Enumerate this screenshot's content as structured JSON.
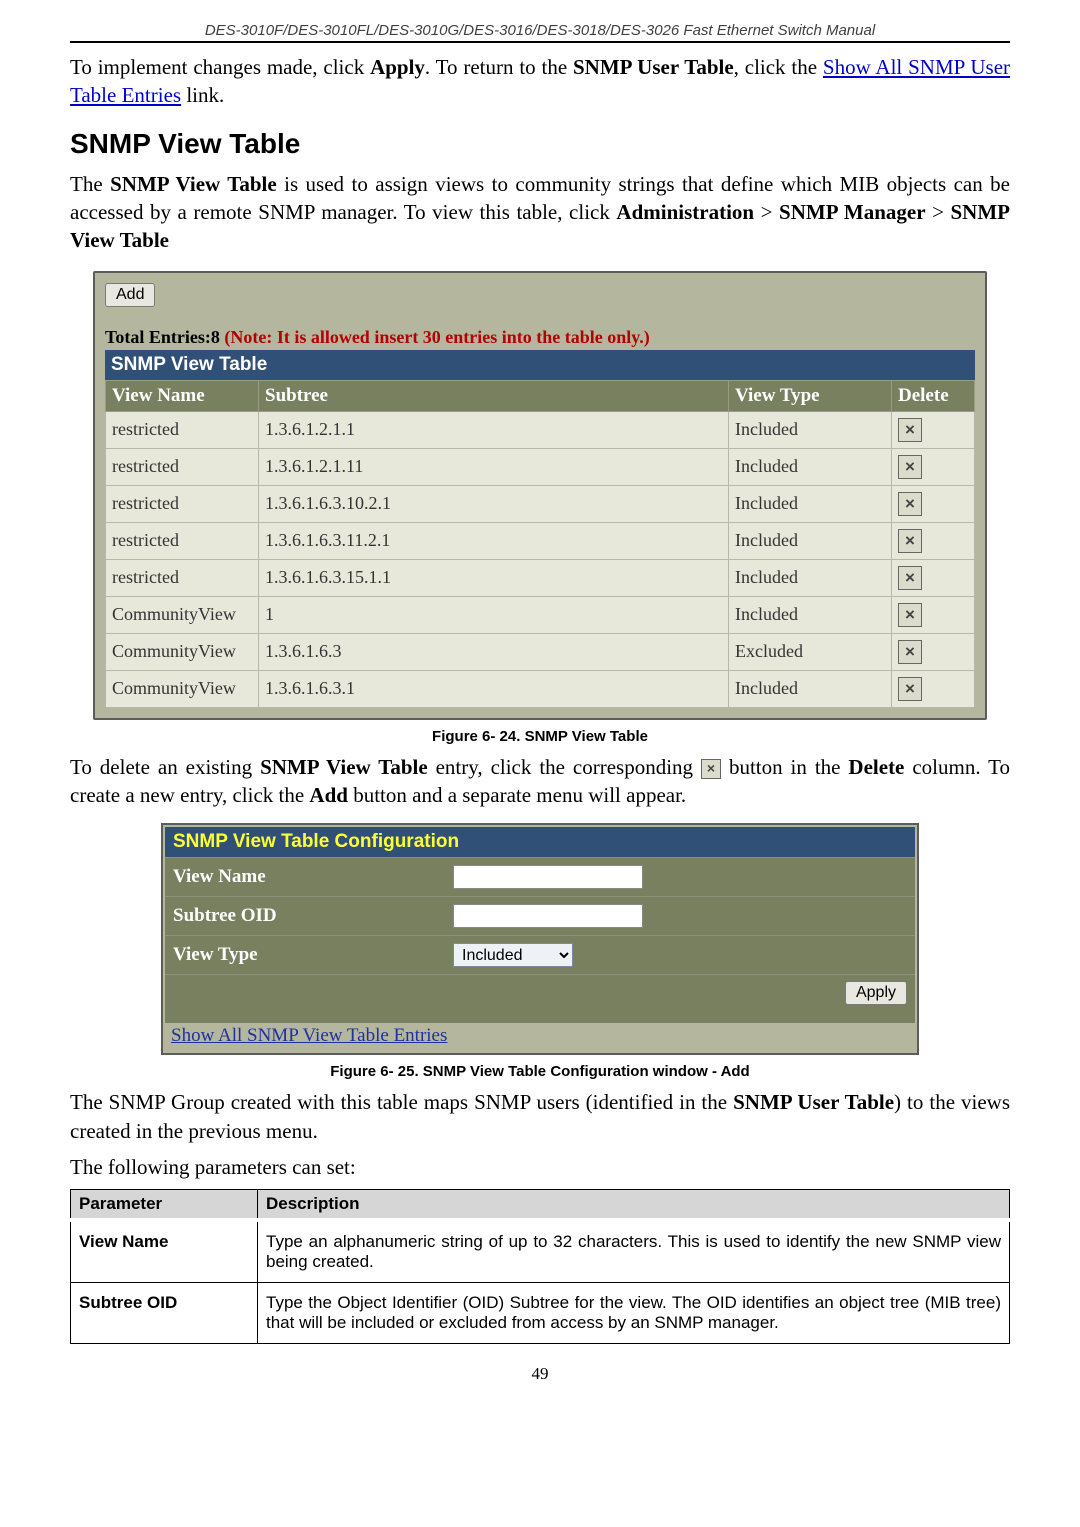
{
  "doc_header": "DES-3010F/DES-3010FL/DES-3010G/DES-3016/DES-3018/DES-3026 Fast Ethernet Switch Manual",
  "intro_para": {
    "pre": "To implement changes made, click ",
    "apply": "Apply",
    "mid": ". To return to the ",
    "snmp_user_table": "SNMP User Table",
    "mid2": ", click the ",
    "link": "Show All SNMP User Table Entries",
    "post": " link."
  },
  "heading": "SNMP View Table",
  "desc_para": {
    "pre": "The ",
    "b1": "SNMP View Table",
    "mid1": " is used to assign views to community strings that define which MIB objects can be accessed by a remote SNMP manager. To view this table, click ",
    "b2": "Administration",
    "gt1": " > ",
    "b3": "SNMP Manager",
    "gt2": " > ",
    "b4": "SNMP View Table"
  },
  "snmp_table": {
    "add_label": "Add",
    "count_prefix": "Total Entries:",
    "count": "8",
    "note": " (Note: It is allowed insert 30 entries into the table only.)",
    "title": "SNMP View Table",
    "headers": {
      "c1": "View Name",
      "c2": "Subtree",
      "c3": "View Type",
      "c4": "Delete"
    },
    "rows": [
      {
        "name": "restricted",
        "subtree": "1.3.6.1.2.1.1",
        "type": "Included"
      },
      {
        "name": "restricted",
        "subtree": "1.3.6.1.2.1.11",
        "type": "Included"
      },
      {
        "name": "restricted",
        "subtree": "1.3.6.1.6.3.10.2.1",
        "type": "Included"
      },
      {
        "name": "restricted",
        "subtree": "1.3.6.1.6.3.11.2.1",
        "type": "Included"
      },
      {
        "name": "restricted",
        "subtree": "1.3.6.1.6.3.15.1.1",
        "type": "Included"
      },
      {
        "name": "CommunityView",
        "subtree": "1",
        "type": "Included"
      },
      {
        "name": "CommunityView",
        "subtree": "1.3.6.1.6.3",
        "type": "Excluded"
      },
      {
        "name": "CommunityView",
        "subtree": "1.3.6.1.6.3.1",
        "type": "Included"
      }
    ],
    "delete_glyph": "×"
  },
  "fig1_caption": "Figure 6- 24. SNMP View Table",
  "delete_para": {
    "pre": "To delete an existing ",
    "b1": "SNMP View Table",
    "mid1": " entry, click the corresponding ",
    "mid2": " button in the ",
    "b2": "Delete",
    "mid3": " column. To create a new entry, click the ",
    "b3": "Add",
    "post": " button and a separate menu will appear."
  },
  "config": {
    "title": "SNMP View Table Configuration",
    "rows": {
      "view_name": "View Name",
      "subtree_oid": "Subtree OID",
      "view_type": "View Type",
      "view_type_value": "Included"
    },
    "apply_label": "Apply",
    "link": "Show All SNMP View Table Entries"
  },
  "fig2_caption": "Figure 6- 25. SNMP View Table Configuration window - Add",
  "group_para": {
    "pre": "The SNMP Group created with this table maps SNMP users (identified in the ",
    "b1": "SNMP User Table",
    "post": ") to the views created in the previous menu."
  },
  "params_lead": "The following parameters can set:",
  "param_table": {
    "h1": "Parameter",
    "h2": "Description",
    "rows": [
      {
        "name": "View Name",
        "desc": "Type an alphanumeric string of up to 32 characters. This is used to identify the new SNMP view being created."
      },
      {
        "name": "Subtree OID",
        "desc": "Type the Object Identifier (OID) Subtree for the view. The OID identifies an object tree (MIB tree) that will be included or excluded from access by an SNMP manager."
      }
    ]
  },
  "page_number": "49"
}
